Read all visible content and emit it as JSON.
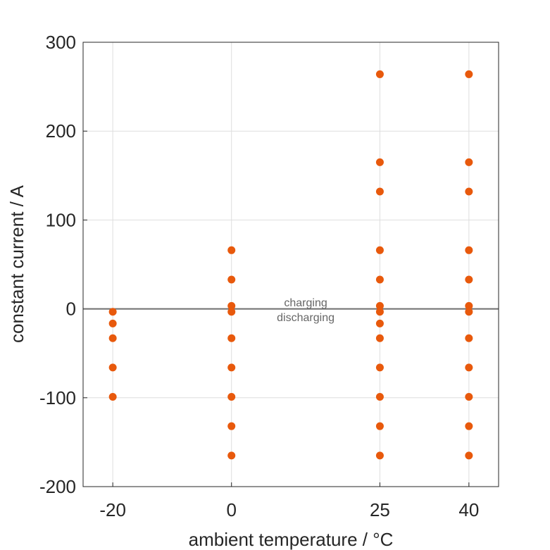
{
  "chart_data": {
    "type": "scatter",
    "title": "",
    "xlabel": "ambient temperature / °C",
    "ylabel": "constant current / A",
    "xlim": [
      -25,
      45
    ],
    "ylim": [
      -200,
      300
    ],
    "xticks": [
      -20,
      0,
      25,
      40
    ],
    "xtick_labels": [
      "-20",
      "0",
      "25",
      "40"
    ],
    "yticks": [
      300,
      200,
      100,
      0,
      -100,
      -200
    ],
    "ytick_labels": [
      "300",
      "200",
      "100",
      "0",
      "-100",
      "-200"
    ],
    "grid": true,
    "zero_line": true,
    "annotations": [
      {
        "text": "charging",
        "x": 12.5,
        "y": 7
      },
      {
        "text": "discharging",
        "x": 12.5,
        "y": -10
      }
    ],
    "marker_color": "#E8590C",
    "series": [
      {
        "name": "-20 °C",
        "x": -20,
        "values": [
          -3.3,
          -16.5,
          -33,
          -66,
          -99
        ]
      },
      {
        "name": "0 °C",
        "x": 0,
        "values": [
          66,
          33,
          3.3,
          -3.3,
          -33,
          -66,
          -99,
          -132,
          -165
        ]
      },
      {
        "name": "25 °C",
        "x": 25,
        "values": [
          264,
          165,
          132,
          66,
          33,
          3.3,
          -3.3,
          -16.5,
          -33,
          -66,
          -99,
          -132,
          -165
        ]
      },
      {
        "name": "40 °C",
        "x": 40,
        "values": [
          264,
          165,
          132,
          66,
          33,
          3.3,
          -3.3,
          -33,
          -66,
          -99,
          -132,
          -165
        ]
      }
    ]
  }
}
